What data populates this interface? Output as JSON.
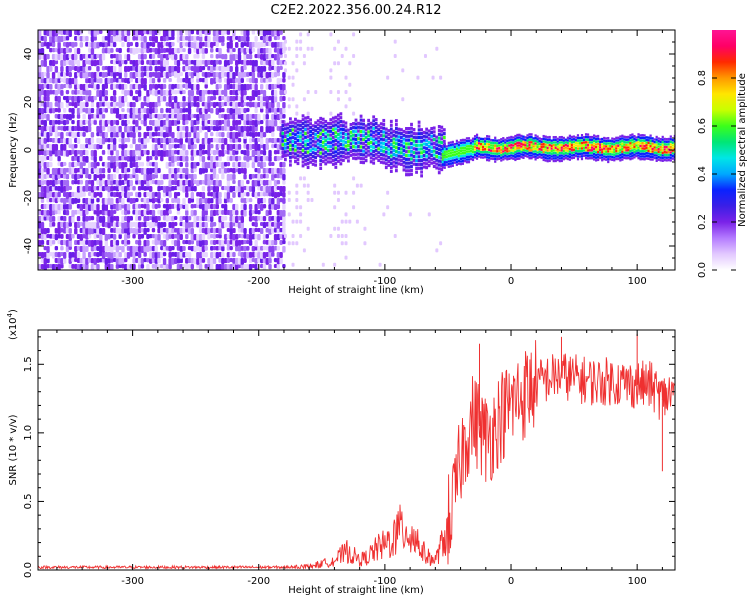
{
  "figure": {
    "title": "C2E2.2022.356.00.24.R12"
  },
  "chart_data": [
    {
      "type": "heatmap",
      "title": "C2E2.2022.356.00.24.R12",
      "xlabel": "Height of straight line (km)",
      "ylabel": "Frequency (Hz)",
      "xlim": [
        -375,
        130
      ],
      "ylim": [
        -50,
        50
      ],
      "x_ticks": [
        -300,
        -200,
        -100,
        0,
        100
      ],
      "y_ticks": [
        -40,
        -20,
        0,
        20,
        40
      ],
      "grid": false,
      "colorbar": {
        "label": "Normalized spectral amplitude",
        "range": [
          0,
          1
        ],
        "ticks": [
          "0.0",
          "0.2",
          "0.4",
          "0.6",
          "0.8"
        ],
        "colormap": [
          "#ffffff",
          "#e2c8ff",
          "#b47bff",
          "#7a22e8",
          "#3b1fe6",
          "#0a22ff",
          "#00a8ff",
          "#00e6e6",
          "#00e676",
          "#3cff1a",
          "#c8ff00",
          "#ffe600",
          "#ff9900",
          "#ff2a00",
          "#ff0066",
          "#ff1493"
        ]
      },
      "regions": [
        {
          "x": [
            -375,
            -180
          ],
          "freq_span": [
            -50,
            50
          ],
          "amplitude": 0.1,
          "description_visible": false
        },
        {
          "x": [
            -180,
            -55
          ],
          "freq_span": [
            -12,
            12
          ],
          "amplitude_peak": 0.4
        },
        {
          "x": [
            -55,
            130
          ],
          "freq_span": [
            -5,
            5
          ],
          "amplitude_peak": 0.9
        }
      ]
    },
    {
      "type": "line",
      "xlabel": "Height of straight line (km)",
      "ylabel": "SNR (10 * v/v)",
      "y_scale_label": "(x10",
      "y_scale_exponent": "4",
      "xlim": [
        -375,
        130
      ],
      "ylim": [
        0,
        1.75
      ],
      "x_ticks": [
        -300,
        -200,
        -100,
        0,
        100
      ],
      "y_ticks": [
        "0.0",
        "0.5",
        "1.0",
        "1.5"
      ],
      "grid": false,
      "color": "#ef3030",
      "x": [
        -375,
        -340,
        -300,
        -260,
        -220,
        -180,
        -160,
        -150,
        -140,
        -130,
        -125,
        -120,
        -115,
        -110,
        -105,
        -100,
        -95,
        -90,
        -85,
        -80,
        -75,
        -70,
        -65,
        -60,
        -55,
        -50,
        -45,
        -40,
        -35,
        -30,
        -25,
        -20,
        -15,
        -10,
        -5,
        0,
        5,
        10,
        15,
        20,
        25,
        30,
        40,
        50,
        60,
        70,
        80,
        90,
        100,
        110,
        115,
        120,
        125,
        130
      ],
      "y": [
        0.02,
        0.02,
        0.02,
        0.02,
        0.02,
        0.02,
        0.03,
        0.05,
        0.08,
        0.15,
        0.12,
        0.08,
        0.1,
        0.14,
        0.18,
        0.2,
        0.25,
        0.3,
        0.35,
        0.3,
        0.25,
        0.15,
        0.1,
        0.08,
        0.2,
        0.35,
        0.5,
        0.8,
        1.0,
        1.1,
        1.05,
        0.95,
        1.0,
        1.1,
        1.15,
        1.2,
        1.25,
        1.28,
        1.32,
        1.35,
        1.38,
        1.4,
        1.42,
        1.4,
        1.38,
        1.37,
        1.38,
        1.36,
        1.35,
        1.35,
        1.3,
        1.25,
        1.28,
        1.3
      ],
      "peaks": [
        {
          "x": -25,
          "y": 1.65
        },
        {
          "x": 100,
          "y": 1.72
        },
        {
          "x": 40,
          "y": 1.7
        },
        {
          "x": 120,
          "y": 0.72
        }
      ]
    }
  ]
}
